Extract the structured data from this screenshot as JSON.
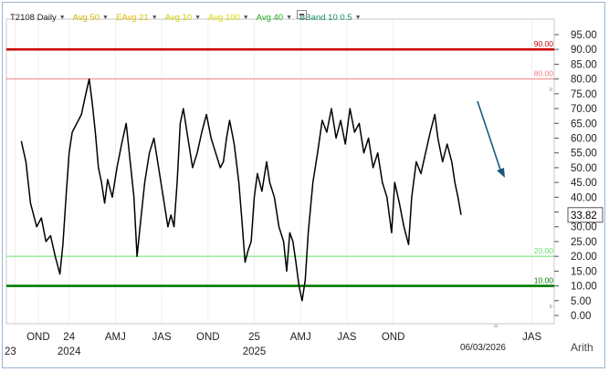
{
  "toolbar": {
    "symbol": "T2108 Daily",
    "indicators": [
      {
        "label": "Avg 50",
        "color": "#d6b400"
      },
      {
        "label": "EAvg 21",
        "color": "#e0c000"
      },
      {
        "label": "Avg 10",
        "color": "#cccc00"
      },
      {
        "label": "Avg 100",
        "color": "#d8d800"
      },
      {
        "label": "Avg 40",
        "color": "#22aa22"
      },
      {
        "label": "BBand 10 0.5",
        "color": "#1a8a66"
      }
    ]
  },
  "chart_data": {
    "type": "line",
    "title": "",
    "xlabel": "",
    "ylabel": "",
    "ylim": [
      0,
      95
    ],
    "y_ticks": [
      0,
      5,
      10,
      15,
      20,
      25,
      30,
      35,
      40,
      45,
      50,
      55,
      60,
      65,
      70,
      75,
      80,
      85,
      90,
      95
    ],
    "y_tick_labels": [
      "0.00",
      "5.00",
      "10.00",
      "15.00",
      "20.00",
      "25.00",
      "30.00",
      "35.00",
      "40.00",
      "45.00",
      "50.00",
      "55.00",
      "60.00",
      "65.00",
      "70.00",
      "75.00",
      "80.00",
      "85.00",
      "90.00",
      "95.00"
    ],
    "x_ticks": [
      {
        "month_index": -0.5,
        "label": "23"
      },
      {
        "month_index": 1,
        "label": "OND"
      },
      {
        "month_index": 3,
        "label": "24",
        "sublabel": "2024"
      },
      {
        "month_index": 6,
        "label": "AMJ"
      },
      {
        "month_index": 9,
        "label": "JAS"
      },
      {
        "month_index": 12,
        "label": "OND"
      },
      {
        "month_index": 15,
        "label": "25",
        "sublabel": "2025"
      },
      {
        "month_index": 18,
        "label": "AMJ"
      },
      {
        "month_index": 21,
        "label": "JAS"
      },
      {
        "month_index": 24,
        "label": "OND"
      },
      {
        "month_index": 33,
        "label": "JAS"
      }
    ],
    "axis_corner_label": "Arith",
    "last_value_label": "33.82",
    "last_date_label": "06/03/2026",
    "reference_lines": [
      {
        "value": 90,
        "label": "90.00",
        "color": "#cc0000",
        "weight": "heavy"
      },
      {
        "value": 80,
        "label": "80.00",
        "color": "#f08080",
        "weight": "light"
      },
      {
        "value": 20,
        "label": "20.00",
        "color": "#66dd66",
        "weight": "light"
      },
      {
        "value": 10,
        "label": "10.00",
        "color": "#007a00",
        "weight": "heavy"
      }
    ],
    "series": [
      {
        "color": "#000000",
        "points": [
          [
            -0.1,
            59
          ],
          [
            0.2,
            52
          ],
          [
            0.5,
            38
          ],
          [
            0.9,
            30
          ],
          [
            1.2,
            33
          ],
          [
            1.5,
            25
          ],
          [
            1.8,
            27
          ],
          [
            2.1,
            20
          ],
          [
            2.4,
            14
          ],
          [
            2.6,
            24
          ],
          [
            2.8,
            40
          ],
          [
            3.0,
            55
          ],
          [
            3.2,
            62
          ],
          [
            3.5,
            65
          ],
          [
            3.8,
            68
          ],
          [
            4.0,
            73
          ],
          [
            4.3,
            80
          ],
          [
            4.5,
            72
          ],
          [
            4.7,
            62
          ],
          [
            4.9,
            50
          ],
          [
            5.1,
            45
          ],
          [
            5.3,
            38
          ],
          [
            5.5,
            46
          ],
          [
            5.8,
            40
          ],
          [
            6.1,
            50
          ],
          [
            6.4,
            58
          ],
          [
            6.7,
            65
          ],
          [
            7.0,
            50
          ],
          [
            7.2,
            40
          ],
          [
            7.4,
            20
          ],
          [
            7.6,
            30
          ],
          [
            7.9,
            45
          ],
          [
            8.2,
            55
          ],
          [
            8.5,
            60
          ],
          [
            8.8,
            50
          ],
          [
            9.1,
            40
          ],
          [
            9.4,
            30
          ],
          [
            9.6,
            34
          ],
          [
            9.8,
            30
          ],
          [
            10.0,
            45
          ],
          [
            10.2,
            65
          ],
          [
            10.4,
            70
          ],
          [
            10.7,
            60
          ],
          [
            11.0,
            50
          ],
          [
            11.3,
            55
          ],
          [
            11.6,
            62
          ],
          [
            11.9,
            68
          ],
          [
            12.2,
            60
          ],
          [
            12.5,
            55
          ],
          [
            12.8,
            50
          ],
          [
            13.0,
            52
          ],
          [
            13.2,
            60
          ],
          [
            13.4,
            66
          ],
          [
            13.7,
            58
          ],
          [
            14.0,
            45
          ],
          [
            14.2,
            32
          ],
          [
            14.4,
            18
          ],
          [
            14.6,
            22
          ],
          [
            14.8,
            25
          ],
          [
            15.0,
            40
          ],
          [
            15.2,
            48
          ],
          [
            15.5,
            42
          ],
          [
            15.8,
            52
          ],
          [
            16.0,
            45
          ],
          [
            16.3,
            40
          ],
          [
            16.6,
            30
          ],
          [
            16.9,
            25
          ],
          [
            17.1,
            15
          ],
          [
            17.3,
            28
          ],
          [
            17.5,
            25
          ],
          [
            17.7,
            18
          ],
          [
            17.9,
            10
          ],
          [
            18.1,
            5
          ],
          [
            18.3,
            12
          ],
          [
            18.5,
            28
          ],
          [
            18.8,
            45
          ],
          [
            19.1,
            55
          ],
          [
            19.4,
            66
          ],
          [
            19.7,
            62
          ],
          [
            20.0,
            70
          ],
          [
            20.3,
            60
          ],
          [
            20.6,
            66
          ],
          [
            20.9,
            58
          ],
          [
            21.2,
            70
          ],
          [
            21.5,
            62
          ],
          [
            21.8,
            65
          ],
          [
            22.1,
            55
          ],
          [
            22.4,
            60
          ],
          [
            22.7,
            50
          ],
          [
            23.0,
            55
          ],
          [
            23.3,
            45
          ],
          [
            23.6,
            40
          ],
          [
            23.9,
            28
          ],
          [
            24.1,
            45
          ],
          [
            24.4,
            38
          ],
          [
            24.7,
            30
          ],
          [
            25.0,
            24
          ],
          [
            25.2,
            40
          ],
          [
            25.5,
            52
          ],
          [
            25.8,
            48
          ],
          [
            26.1,
            55
          ],
          [
            26.4,
            62
          ],
          [
            26.7,
            68
          ],
          [
            26.9,
            60
          ],
          [
            27.2,
            52
          ],
          [
            27.5,
            58
          ],
          [
            27.8,
            52
          ],
          [
            28.0,
            45
          ],
          [
            28.2,
            40
          ],
          [
            28.4,
            34
          ]
        ]
      }
    ]
  }
}
